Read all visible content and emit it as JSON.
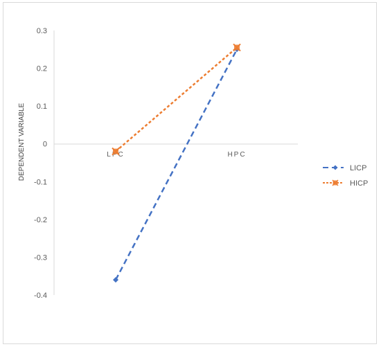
{
  "chart_data": {
    "type": "line",
    "categories": [
      "LPC",
      "HPC"
    ],
    "ylabel": "DEPENDENT VARIABLE",
    "xlabel": "",
    "ylim": [
      -0.4,
      0.3
    ],
    "yticks": [
      "0.3",
      "0.2",
      "0.1",
      "0",
      "-0.1",
      "-0.2",
      "-0.3",
      "-0.4"
    ],
    "grid": false,
    "legend_position": "right",
    "series": [
      {
        "name": "LICP",
        "values": [
          -0.36,
          0.25
        ],
        "color": "#4472c4",
        "line_style": "dashed",
        "marker": "diamond"
      },
      {
        "name": "HICP",
        "values": [
          -0.02,
          0.255
        ],
        "color": "#ed7d31",
        "line_style": "dotted",
        "marker": "x-square"
      }
    ]
  }
}
